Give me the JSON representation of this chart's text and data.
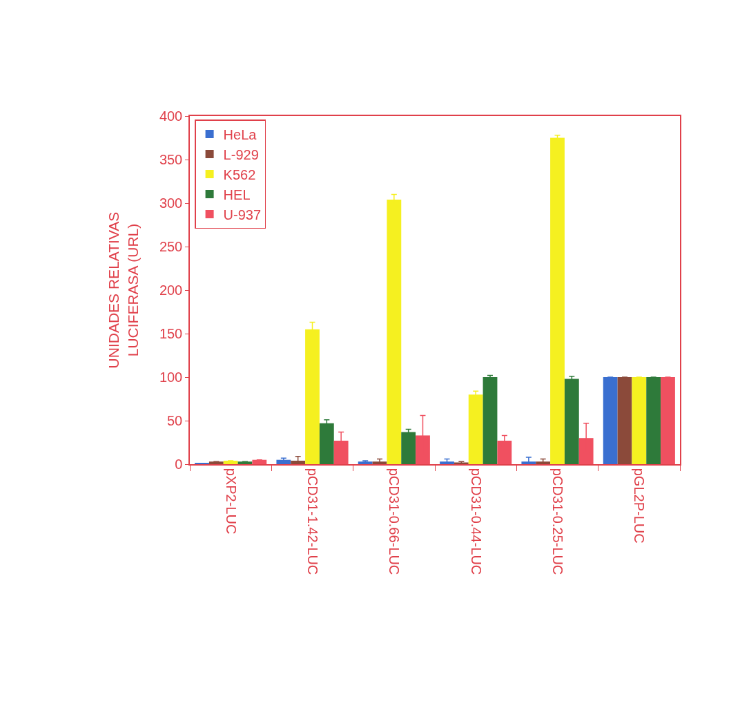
{
  "chart_data": {
    "type": "bar",
    "ylabel": "UNIDADES RELATIVAS\nLUCIFERASA (URL)",
    "categories": [
      "pXP2-LUC",
      "pCD31-1.42-LUC",
      "pCD31-0.66-LUC",
      "pCD31-0.44-LUC",
      "pCD31-0.25-LUC",
      "pGL2P-LUC"
    ],
    "series": [
      {
        "name": "HeLa",
        "color": "#3a6fd0",
        "values": [
          1,
          5,
          3,
          3,
          3,
          100
        ],
        "errors": [
          null,
          2,
          1,
          3,
          5,
          null
        ]
      },
      {
        "name": "L-929",
        "color": "#8b4a3a",
        "values": [
          3,
          4,
          3,
          2,
          3,
          100
        ],
        "errors": [
          null,
          5,
          3,
          1,
          3,
          null
        ]
      },
      {
        "name": "K562",
        "color": "#f5f020",
        "values": [
          4,
          155,
          304,
          80,
          375,
          100
        ],
        "errors": [
          null,
          8,
          6,
          4,
          3,
          null
        ]
      },
      {
        "name": "HEL",
        "color": "#2e7a3a",
        "values": [
          3,
          47,
          37,
          100,
          98,
          100
        ],
        "errors": [
          null,
          4,
          3,
          2,
          3,
          null
        ]
      },
      {
        "name": "U-937",
        "color": "#f05060",
        "values": [
          5,
          27,
          33,
          27,
          30,
          100
        ],
        "errors": [
          null,
          10,
          23,
          6,
          17,
          null
        ]
      }
    ],
    "ylim": [
      0,
      400
    ],
    "yticks": [
      0,
      50,
      100,
      150,
      200,
      250,
      300,
      350,
      400
    ],
    "legend": "top left"
  }
}
